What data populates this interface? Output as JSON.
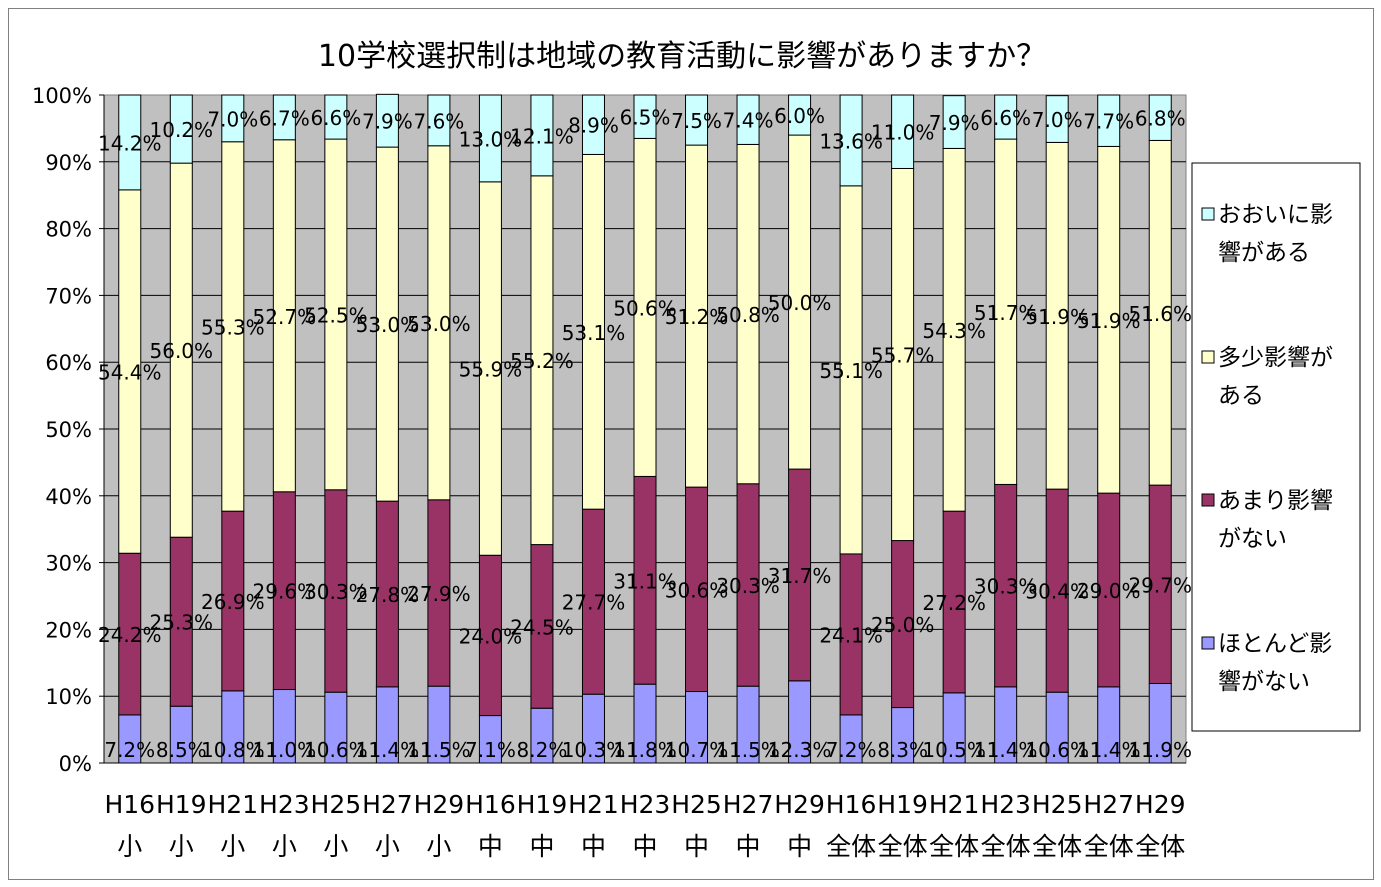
{
  "chart_data": {
    "type": "bar",
    "stacked": true,
    "normalized": true,
    "title": "10学校選択制は地域の教育活動に影響がありますか？",
    "xlabel": "",
    "ylabel": "",
    "ylim": [
      0,
      100
    ],
    "y_ticks": [
      "0%",
      "10%",
      "20%",
      "30%",
      "40%",
      "50%",
      "60%",
      "70%",
      "80%",
      "90%",
      "100%"
    ],
    "grid": true,
    "legend_position": "right",
    "categories": [
      [
        "H16",
        "小"
      ],
      [
        "H19",
        "小"
      ],
      [
        "H21",
        "小"
      ],
      [
        "H23",
        "小"
      ],
      [
        "H25",
        "小"
      ],
      [
        "H27",
        "小"
      ],
      [
        "H29",
        "小"
      ],
      [
        "H16",
        "中"
      ],
      [
        "H19",
        "中"
      ],
      [
        "H21",
        "中"
      ],
      [
        "H23",
        "中"
      ],
      [
        "H25",
        "中"
      ],
      [
        "H27",
        "中"
      ],
      [
        "H29",
        "中"
      ],
      [
        "H16",
        "全体"
      ],
      [
        "H19",
        "全体"
      ],
      [
        "H21",
        "全体"
      ],
      [
        "H23",
        "全体"
      ],
      [
        "H25",
        "全体"
      ],
      [
        "H27",
        "全体"
      ],
      [
        "H29",
        "全体"
      ]
    ],
    "series": [
      {
        "name": "ほとんど影響がない",
        "legend_lines": [
          "ほとんど影",
          "響がない"
        ],
        "color": "#9999ff",
        "values": [
          7.2,
          8.5,
          10.8,
          11.0,
          10.6,
          11.4,
          11.5,
          7.1,
          8.2,
          10.3,
          11.8,
          10.7,
          11.5,
          12.3,
          7.2,
          8.3,
          10.5,
          11.4,
          10.6,
          11.4,
          11.9
        ],
        "labels": [
          "7.2%",
          "8.5%",
          "10.8%",
          "11.0%",
          "10.6%",
          "11.4%",
          "11.5%",
          "7.1%",
          "8.2%",
          "10.3%",
          "11.8%",
          "10.7%",
          "11.5%",
          "12.3%",
          "7.2%",
          "8.3%",
          "10.5%",
          "11.4%",
          "10.6%",
          "11.4%",
          "11.9%"
        ]
      },
      {
        "name": "あまり影響がない",
        "legend_lines": [
          "あまり影響",
          "がない"
        ],
        "color": "#993366",
        "values": [
          24.2,
          25.3,
          26.9,
          29.6,
          30.3,
          27.8,
          27.9,
          24.0,
          24.5,
          27.7,
          31.1,
          30.6,
          30.3,
          31.7,
          24.1,
          25.0,
          27.2,
          30.3,
          30.4,
          29.0,
          29.7
        ],
        "labels": [
          "24.2%",
          "25.3%",
          "26.9%",
          "29.6%",
          "30.3%",
          "27.8%",
          "27.9%",
          "24.0%",
          "24.5%",
          "27.7%",
          "31.1%",
          "30.6%",
          "30.3%",
          "31.7%",
          "24.1%",
          "25.0%",
          "27.2%",
          "30.3%",
          "30.4%",
          "29.0%",
          "29.7%"
        ]
      },
      {
        "name": "多少影響がある",
        "legend_lines": [
          "多少影響が",
          "ある"
        ],
        "color": "#ffffcc",
        "values": [
          54.4,
          56.0,
          55.3,
          52.7,
          52.5,
          53.0,
          53.0,
          55.9,
          55.2,
          53.1,
          50.6,
          51.2,
          50.8,
          50.0,
          55.1,
          55.7,
          54.3,
          51.7,
          51.9,
          51.9,
          51.6
        ],
        "labels": [
          "54.4%",
          "56.0%",
          "55.3%",
          "52.7%",
          "52.5%",
          "53.0%",
          "53.0%",
          "55.9%",
          "55.2%",
          "53.1%",
          "50.6%",
          "51.2%",
          "50.8%",
          "50.0%",
          "55.1%",
          "55.7%",
          "54.3%",
          "51.7%",
          "51.9%",
          "51.9%",
          "51.6%"
        ]
      },
      {
        "name": "おおいに影響がある",
        "legend_lines": [
          "おおいに影",
          "響がある"
        ],
        "color": "#ccffff",
        "values": [
          14.2,
          10.2,
          7.0,
          6.7,
          6.6,
          7.9,
          7.6,
          13.0,
          12.1,
          8.9,
          6.5,
          7.5,
          7.4,
          6.0,
          13.6,
          11.0,
          7.9,
          6.6,
          7.0,
          7.7,
          6.8
        ],
        "labels": [
          "14.2%",
          "10.2%",
          "7.0%",
          "6.7%",
          "6.6%",
          "7.9%",
          "7.6%",
          "13.0%",
          "12.1%",
          "8.9%",
          "6.5%",
          "7.5%",
          "7.4%",
          "6.0%",
          "13.6%",
          "11.0%",
          "7.9%",
          "6.6%",
          "7.0%",
          "7.7%",
          "6.8%"
        ]
      }
    ],
    "plot_background": "#c0c0c0"
  }
}
